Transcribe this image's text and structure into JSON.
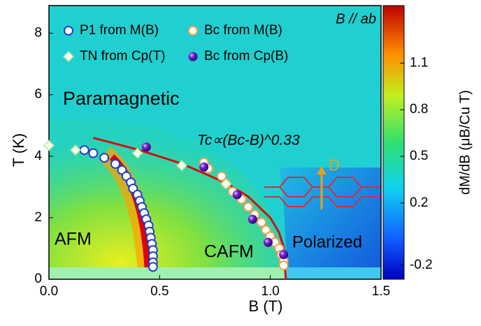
{
  "chart_data": {
    "type": "scatter",
    "x_label": "B (T)",
    "y_label": "T (K)",
    "xlim": [
      0,
      1.5
    ],
    "ylim": [
      0,
      8.9
    ],
    "xticks": [
      {
        "value": 0,
        "label": "0.0"
      },
      0.5,
      {
        "value": 1,
        "label": "1.0"
      },
      1.5
    ],
    "yticks": [
      0,
      2,
      4,
      6,
      8
    ],
    "legend": "upper left",
    "series": [
      {
        "name": "P1 from M(B)",
        "color": "#1f3fd0",
        "marker": "circle",
        "x": [
          0.16,
          0.2,
          0.25,
          0.3,
          0.33,
          0.35,
          0.37,
          0.38,
          0.4,
          0.41,
          0.42,
          0.43,
          0.44,
          0.45,
          0.455,
          0.46,
          0.465,
          0.47,
          0.47,
          0.47,
          0.47
        ],
        "y": [
          4.2,
          4.1,
          3.95,
          3.75,
          3.55,
          3.35,
          3.15,
          2.95,
          2.75,
          2.55,
          2.35,
          2.15,
          1.95,
          1.75,
          1.55,
          1.35,
          1.15,
          0.95,
          0.75,
          0.55,
          0.4
        ]
      },
      {
        "name": "Bc from M(B)",
        "color": "#f0a050",
        "marker": "circle",
        "x": [
          0.7,
          0.72,
          0.78,
          0.8,
          0.83,
          0.87,
          0.9,
          0.93,
          0.96,
          0.98,
          1.0,
          1.02,
          1.04,
          1.05,
          1.06,
          1.06
        ],
        "y": [
          3.8,
          3.6,
          3.35,
          3.1,
          2.85,
          2.6,
          2.35,
          2.1,
          1.85,
          1.6,
          1.4,
          1.2,
          1.0,
          0.8,
          0.6,
          0.45
        ]
      },
      {
        "name": "TN from Cp(T)",
        "color": "#b8e0a0",
        "marker": "diamond",
        "x": [
          0.0,
          0.12,
          0.4,
          0.6,
          0.8
        ],
        "y": [
          4.35,
          4.2,
          4.1,
          3.7,
          3.1
        ]
      },
      {
        "name": "Bc from Cp(B)",
        "color": "#6a10c0",
        "marker": "sphere",
        "x": [
          0.44,
          0.7,
          0.85,
          0.92,
          0.99,
          1.06
        ],
        "y": [
          4.3,
          3.65,
          2.75,
          1.95,
          1.2,
          0.8
        ]
      }
    ],
    "fit": {
      "label": "Tc∝(Bc-B)^0.33",
      "color": "#d01010",
      "x": [
        0.2,
        0.4,
        0.6,
        0.8,
        0.9,
        1.0,
        1.04,
        1.06,
        1.07
      ],
      "y": [
        4.6,
        4.22,
        3.76,
        3.13,
        2.69,
        2.0,
        1.51,
        1.06,
        0
      ]
    },
    "colorbar": {
      "label": "dM/dB (μB/Cu T)",
      "clim": [
        -0.29,
        1.47
      ],
      "ticks": [
        -0.2,
        0.2,
        0.5,
        0.8,
        1.1
      ]
    },
    "annotations": [
      "Paramagnetic",
      "AFM",
      "CAFM",
      "Polarized",
      "B // ab",
      "D"
    ]
  }
}
